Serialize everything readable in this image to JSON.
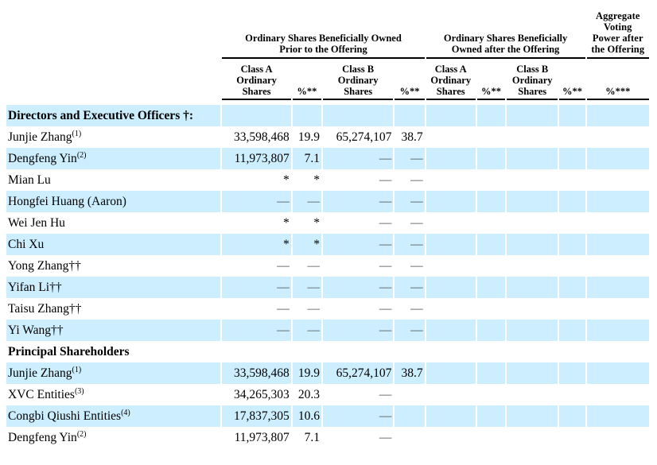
{
  "table": {
    "col_groups": [
      {
        "label": "Ordinary Shares Beneficially Owned\nPrior to the Offering"
      },
      {
        "label": "Ordinary Shares Beneficially\nOwned after the Offering"
      },
      {
        "label": "Aggregate\nVoting\nPower after\nthe Offering"
      }
    ],
    "sub_headers": [
      "Class A\nOrdinary\nShares",
      "%**",
      "Class B\nOrdinary\nShares",
      "%**",
      "Class A\nOrdinary\nShares",
      "%**",
      "Class B\nOrdinary\nShares",
      "%**",
      "%***"
    ],
    "style": {
      "row_highlight_color": "#cceeff",
      "rule_color": "#000000",
      "dash_color": "#4f4f4f"
    },
    "rows": [
      {
        "name": "Directors and Executive Officers †:",
        "sup": "",
        "type": "section",
        "cells": [
          "",
          "",
          "",
          "",
          "",
          "",
          "",
          "",
          ""
        ]
      },
      {
        "name": "Junjie Zhang",
        "sup": "(1)",
        "type": "person",
        "cells": [
          "33,598,468",
          "19.9",
          "65,274,107",
          "38.7",
          "",
          "",
          "",
          "",
          ""
        ]
      },
      {
        "name": "Dengfeng Yin",
        "sup": "(2)",
        "type": "person",
        "cells": [
          "11,973,807",
          "7.1",
          "—",
          "—",
          "",
          "",
          "",
          "",
          ""
        ]
      },
      {
        "name": "Mian Lu",
        "sup": "",
        "type": "person",
        "cells": [
          "*",
          "*",
          "—",
          "—",
          "",
          "",
          "",
          "",
          ""
        ]
      },
      {
        "name": "Hongfei Huang (Aaron)",
        "sup": "",
        "type": "person",
        "cells": [
          "—",
          "—",
          "—",
          "—",
          "",
          "",
          "",
          "",
          ""
        ]
      },
      {
        "name": "Wei Jen Hu",
        "sup": "",
        "type": "person",
        "cells": [
          "*",
          "*",
          "—",
          "—",
          "",
          "",
          "",
          "",
          ""
        ]
      },
      {
        "name": "Chi Xu",
        "sup": "",
        "type": "person",
        "cells": [
          "*",
          "*",
          "—",
          "—",
          "",
          "",
          "",
          "",
          ""
        ]
      },
      {
        "name": "Yong Zhang††",
        "sup": "",
        "type": "person",
        "cells": [
          "—",
          "—",
          "—",
          "—",
          "",
          "",
          "",
          "",
          ""
        ]
      },
      {
        "name": "Yifan Li††",
        "sup": "",
        "type": "person",
        "cells": [
          "—",
          "—",
          "—",
          "—",
          "",
          "",
          "",
          "",
          ""
        ]
      },
      {
        "name": "Taisu Zhang††",
        "sup": "",
        "type": "person",
        "cells": [
          "—",
          "—",
          "—",
          "—",
          "",
          "",
          "",
          "",
          ""
        ]
      },
      {
        "name": "Yi Wang††",
        "sup": "",
        "type": "person",
        "cells": [
          "—",
          "—",
          "—",
          "—",
          "",
          "",
          "",
          "",
          ""
        ]
      },
      {
        "name": "Principal Shareholders",
        "sup": "",
        "type": "section",
        "cells": [
          "",
          "",
          "",
          "",
          "",
          "",
          "",
          "",
          ""
        ]
      },
      {
        "name": "Junjie Zhang",
        "sup": "(1)",
        "type": "person",
        "cells": [
          "33,598,468",
          "19.9",
          "65,274,107",
          "38.7",
          "",
          "",
          "",
          "",
          ""
        ]
      },
      {
        "name": "XVC Entities",
        "sup": "(3)",
        "type": "person",
        "cells": [
          "34,265,303",
          "20.3",
          "—",
          "",
          "",
          "",
          "",
          "",
          ""
        ]
      },
      {
        "name": "Congbi Qiushi Entities",
        "sup": "(4)",
        "type": "person",
        "cells": [
          "17,837,305",
          "10.6",
          "—",
          "",
          "",
          "",
          "",
          "",
          ""
        ]
      },
      {
        "name": "Dengfeng Yin",
        "sup": "(2)",
        "type": "person",
        "cells": [
          "11,973,807",
          "7.1",
          "—",
          "",
          "",
          "",
          "",
          "",
          ""
        ]
      }
    ]
  }
}
